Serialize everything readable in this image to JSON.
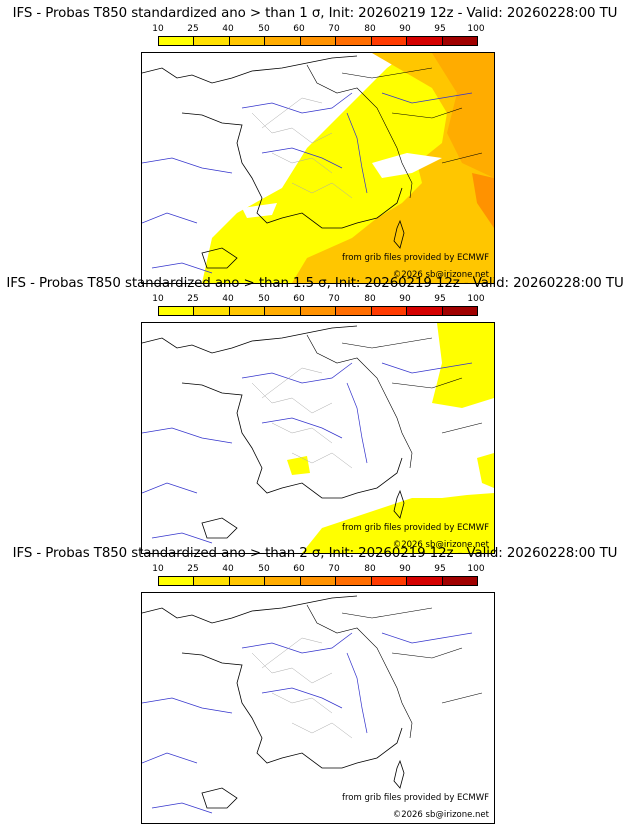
{
  "scale": {
    "labels": [
      "10",
      "25",
      "40",
      "50",
      "60",
      "70",
      "80",
      "90",
      "95",
      "100"
    ],
    "colors": [
      "#ffff00",
      "#ffe000",
      "#ffc600",
      "#ffac00",
      "#ff9200",
      "#ff6d00",
      "#ff3a00",
      "#d40000",
      "#a00000",
      "#5c0000"
    ]
  },
  "credits": {
    "source": "from grib files provided by ECMWF",
    "copyright": "©2026 sb@irizone.net"
  },
  "panels": [
    {
      "title": "IFS - Probas T850  standardized ano > than 1 σ, Init: 20260219 12z - Valid: 20260228:00 TU",
      "threshold_sigma": 1,
      "coverage": "south-east, east and Mediterranean: 10–60%"
    },
    {
      "title": "IFS - Probas T850  standardized ano > than 1.5 σ, Init: 20260219 12z - Valid: 20260228:00 TU",
      "threshold_sigma": 1.5,
      "coverage": "north-east edge and Corsica area: 10–25%"
    },
    {
      "title": "IFS - Probas T850  standardized ano > than 2 σ, Init: 20260219 12z - Valid: 20260228:00 TU",
      "threshold_sigma": 2,
      "coverage": "none"
    }
  ]
}
